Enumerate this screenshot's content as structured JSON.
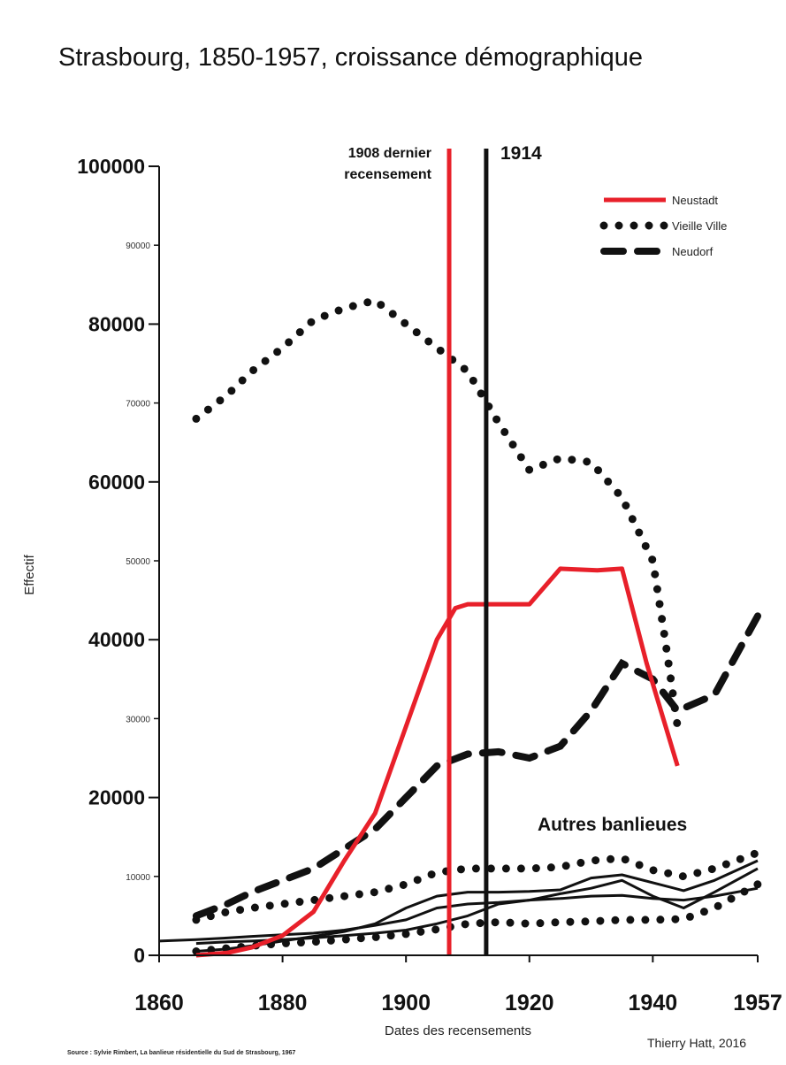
{
  "chart_data": {
    "type": "line",
    "title": "Strasbourg, 1850-1957, croissance démographique",
    "xlabel": "Dates des recensements",
    "ylabel": "Effectif",
    "xlim": [
      1860,
      1957
    ],
    "ylim": [
      0,
      100000
    ],
    "x_ticks": [
      "1860",
      "1880",
      "1900",
      "1920",
      "1940",
      "1957"
    ],
    "y_ticks_major": [
      {
        "value": 0,
        "label": "0"
      },
      {
        "value": 20000,
        "label": "20000"
      },
      {
        "value": 40000,
        "label": "40000"
      },
      {
        "value": 60000,
        "label": "60000"
      },
      {
        "value": 80000,
        "label": "80000"
      },
      {
        "value": 100000,
        "label": "100000"
      }
    ],
    "y_ticks_minor": [
      {
        "value": 10000,
        "label": "10000"
      },
      {
        "value": 30000,
        "label": "30000"
      },
      {
        "value": 50000,
        "label": "50000"
      },
      {
        "value": 70000,
        "label": "70000"
      },
      {
        "value": 90000,
        "label": "90000"
      }
    ],
    "grid": false,
    "legend_position": "top-right",
    "series": [
      {
        "name": "Neustadt",
        "style": "solid",
        "color": "#e8202a",
        "x": [
          1866,
          1871,
          1875,
          1880,
          1885,
          1890,
          1895,
          1900,
          1905,
          1908,
          1910,
          1920,
          1925,
          1931,
          1935,
          1939,
          1944
        ],
        "y": [
          0,
          300,
          1000,
          2500,
          5500,
          12000,
          18000,
          29000,
          40000,
          44000,
          44500,
          44500,
          49000,
          48800,
          49000,
          37000,
          24000
        ]
      },
      {
        "name": "Vieille Ville",
        "style": "dotted",
        "color": "#111111",
        "x": [
          1866,
          1871,
          1875,
          1880,
          1885,
          1890,
          1895,
          1900,
          1905,
          1910,
          1915,
          1920,
          1925,
          1930,
          1935,
          1940,
          1942,
          1944
        ],
        "y": [
          68000,
          71000,
          74000,
          77000,
          80500,
          82000,
          83000,
          80000,
          77000,
          74000,
          67500,
          61500,
          63000,
          62500,
          58000,
          50000,
          40000,
          29000
        ]
      },
      {
        "name": "Neudorf",
        "style": "dashed",
        "color": "#111111",
        "x": [
          1866,
          1871,
          1875,
          1880,
          1885,
          1890,
          1895,
          1900,
          1905,
          1910,
          1915,
          1920,
          1925,
          1930,
          1935,
          1940,
          1944,
          1950,
          1957
        ],
        "y": [
          5000,
          6500,
          8000,
          9500,
          11000,
          13500,
          16000,
          20000,
          24000,
          25500,
          25800,
          25000,
          26500,
          31000,
          37000,
          35000,
          31000,
          33000,
          43000
        ]
      },
      {
        "style": "dotted",
        "color": "#111111",
        "x": [
          1866,
          1871,
          1875,
          1880,
          1885,
          1890,
          1895,
          1900,
          1905,
          1910,
          1920,
          1925,
          1930,
          1935,
          1940,
          1945,
          1950,
          1957
        ],
        "y": [
          4500,
          5500,
          6000,
          6500,
          7000,
          7500,
          8000,
          9000,
          10500,
          11000,
          11000,
          11200,
          12000,
          12300,
          10800,
          10000,
          11000,
          13000
        ]
      },
      {
        "style": "dotted",
        "color": "#111111",
        "x": [
          1866,
          1871,
          1875,
          1880,
          1885,
          1890,
          1895,
          1900,
          1905,
          1910,
          1915,
          1920,
          1925,
          1930,
          1935,
          1940,
          1945,
          1950,
          1957
        ],
        "y": [
          500,
          900,
          1200,
          1500,
          1700,
          2000,
          2300,
          2700,
          3300,
          4000,
          4200,
          4000,
          4200,
          4300,
          4500,
          4500,
          4600,
          6000,
          9000
        ]
      },
      {
        "style": "solid",
        "color": "#111111",
        "x": [
          1860,
          1866,
          1871,
          1875,
          1880,
          1885,
          1890,
          1895,
          1900,
          1905,
          1910,
          1915,
          1920,
          1925,
          1930,
          1935,
          1940,
          1945,
          1950,
          1957
        ],
        "y": [
          1800,
          2000,
          2200,
          2400,
          2600,
          2800,
          3200,
          3800,
          4500,
          6000,
          6500,
          6700,
          7000,
          7200,
          7500,
          7600,
          7200,
          7000,
          7500,
          8500
        ]
      },
      {
        "style": "solid",
        "color": "#111111",
        "x": [
          1866,
          1871,
          1875,
          1880,
          1885,
          1890,
          1895,
          1900,
          1905,
          1910,
          1915,
          1920,
          1925,
          1930,
          1935,
          1940,
          1945,
          1950,
          1957
        ],
        "y": [
          500,
          800,
          1200,
          1800,
          2400,
          3000,
          4000,
          6000,
          7500,
          8000,
          8000,
          8100,
          8300,
          9800,
          10200,
          9200,
          8200,
          9500,
          12000
        ]
      },
      {
        "style": "solid",
        "color": "#111111",
        "x": [
          1866,
          1871,
          1875,
          1880,
          1885,
          1890,
          1895,
          1900,
          1905,
          1910,
          1915,
          1920,
          1925,
          1930,
          1935,
          1940,
          1945,
          1950,
          1957
        ],
        "y": [
          1500,
          1700,
          1800,
          2000,
          2200,
          2500,
          2800,
          3200,
          4000,
          5000,
          6500,
          7000,
          7800,
          8500,
          9500,
          7500,
          6000,
          8000,
          11000
        ]
      }
    ],
    "reference_lines": [
      {
        "x": 1907,
        "color": "#e8202a"
      },
      {
        "x": 1913,
        "color": "#111111"
      }
    ],
    "annotations": {
      "census_line1": "1908 dernier",
      "census_line2": "recensement",
      "war": "1914",
      "suburbs": "Autres banlieues"
    },
    "source": "Source : Sylvie Rimbert, La banlieue résidentielle du Sud de Strasbourg, 1967",
    "credit": "Thierry Hatt, 2016"
  }
}
